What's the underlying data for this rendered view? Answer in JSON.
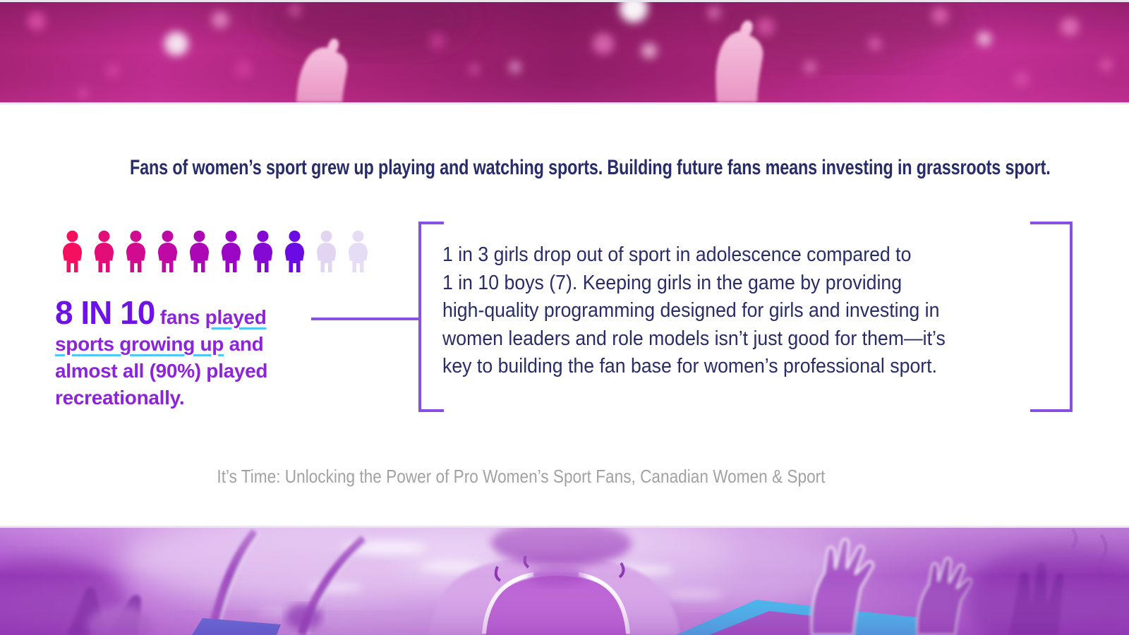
{
  "headline": {
    "text": "Fans of women’s sport grew up playing and watching sports. Building future fans means investing in grassroots sport.",
    "color": "#282c68"
  },
  "pictogram": {
    "label": "8 in 10 fans played sports growing up",
    "filled_count": 8,
    "total_count": 10,
    "colors": [
      "#F4105F",
      "#E30D78",
      "#D00B90",
      "#BE09A4",
      "#AC07B4",
      "#9906C4",
      "#8409D2",
      "#6B0BE4",
      "#E1D5F2",
      "#E6DCF5"
    ]
  },
  "chart_data": {
    "type": "pictograph",
    "title": "8 IN 10 fans played sports growing up",
    "value": 8,
    "total": 10,
    "unit": "fans"
  },
  "stat": {
    "number": "8 IN 10",
    "before_link": " fans ",
    "link": "played sports growing up",
    "after_link": " and almost all (90%) played recreationally.",
    "number_color": "#6d13e8",
    "text_color": "#8c24da",
    "link_underline_color": "#4fc8f5"
  },
  "callout": {
    "text": "1 in 3 girls drop out of sport in adolescence compared to\n1 in 10 boys (7). Keeping girls in the game by providing\nhigh-quality programming designed for girls and investing in\nwomen leaders and role models isn’t just good for them—it’s\nkey to building the fan base for women’s professional sport.",
    "text_color": "#2a2e6c",
    "bracket_color": "#8750e4"
  },
  "source": {
    "text": "It’s Time: Unlocking the Power of Pro Women’s Sport Fans, Canadian Women & Sport",
    "color": "#a2a2a2"
  },
  "banner_top": {
    "description": "raised fists and confetti, magenta duotone photo",
    "base_color": "#be2d90"
  },
  "banner_bottom": {
    "description": "cheering crowd with raised hands, purple duotone photo",
    "base_color": "#c478dc",
    "flag_cyan": "#39b9ec",
    "flag_blue": "#5566d5"
  }
}
